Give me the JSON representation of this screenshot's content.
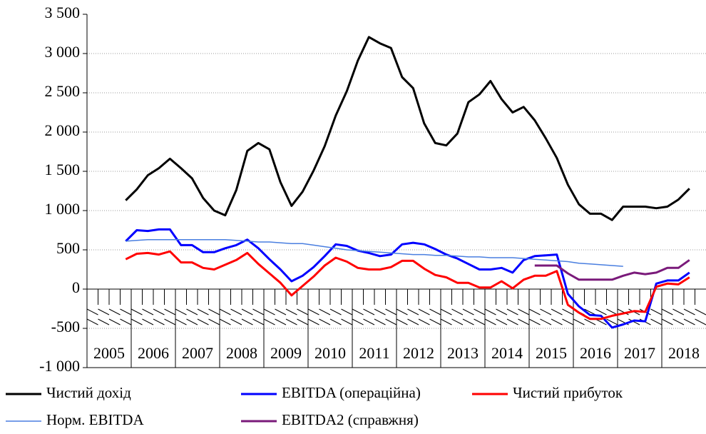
{
  "chart_data": {
    "type": "line",
    "categories": [
      null,
      null,
      null,
      null,
      null,
      null,
      null,
      null,
      null,
      null,
      null,
      null,
      null,
      null,
      null,
      null,
      null,
      null,
      null,
      null,
      null,
      null,
      null,
      null,
      null,
      null,
      null,
      null,
      null,
      null,
      null,
      null,
      null,
      null,
      null,
      null,
      null,
      null,
      null,
      null,
      null,
      null,
      null,
      null,
      null,
      null,
      null,
      null,
      null,
      null,
      null,
      null,
      null,
      null,
      null,
      null
    ],
    "year_labels": [
      "2005",
      "2006",
      "2007",
      "2008",
      "2009",
      "2010",
      "2011",
      "2012",
      "2013",
      "2014",
      "2015",
      "2016",
      "2017",
      "2018"
    ],
    "ylim": [
      -1000,
      3500
    ],
    "yticks": [
      {
        "value": -1000,
        "label": "-1 000"
      },
      -500,
      0,
      500,
      {
        "value": 1000,
        "label": "1 000"
      },
      {
        "value": 1500,
        "label": "1 500"
      },
      {
        "value": 2000,
        "label": "2 000"
      },
      {
        "value": 2500,
        "label": "2 500"
      },
      {
        "value": 3000,
        "label": "3 000"
      },
      {
        "value": 3500,
        "label": "3 500"
      }
    ],
    "grid": true,
    "series": [
      {
        "name": "Чистий дохід",
        "color": "#000000",
        "width": 3,
        "values": [
          null,
          null,
          null,
          1130,
          1270,
          1450,
          1540,
          1660,
          1540,
          1410,
          1160,
          1000,
          940,
          1260,
          1760,
          1860,
          1780,
          1360,
          1060,
          1240,
          1510,
          1820,
          2210,
          2520,
          2910,
          3210,
          3130,
          3070,
          2700,
          2560,
          2110,
          1860,
          1830,
          1980,
          2380,
          2480,
          2650,
          2420,
          2250,
          2320,
          2150,
          1920,
          1670,
          1330,
          1080,
          960,
          960,
          880,
          1050,
          1050,
          1050,
          1030,
          1050,
          1140,
          1280,
          null
        ]
      },
      {
        "name": "EBITDA (операційна)",
        "color": "#0000ff",
        "width": 3,
        "values": [
          null,
          null,
          null,
          610,
          750,
          740,
          760,
          760,
          560,
          560,
          470,
          470,
          520,
          560,
          630,
          520,
          380,
          250,
          100,
          170,
          280,
          420,
          570,
          550,
          490,
          460,
          420,
          440,
          570,
          590,
          570,
          510,
          440,
          390,
          320,
          250,
          250,
          270,
          210,
          370,
          420,
          430,
          440,
          -60,
          -220,
          -330,
          -340,
          -490,
          -450,
          -400,
          -410,
          70,
          110,
          110,
          210,
          null
        ]
      },
      {
        "name": "Чистий прибуток",
        "color": "#ff0000",
        "width": 3,
        "values": [
          null,
          null,
          null,
          380,
          450,
          460,
          440,
          480,
          340,
          340,
          270,
          250,
          310,
          370,
          460,
          320,
          200,
          80,
          -80,
          40,
          160,
          300,
          400,
          350,
          270,
          250,
          250,
          280,
          360,
          360,
          260,
          180,
          150,
          80,
          80,
          20,
          20,
          100,
          10,
          120,
          170,
          170,
          230,
          -200,
          -300,
          -380,
          -380,
          -340,
          -310,
          -280,
          -290,
          30,
          70,
          60,
          150,
          null
        ]
      },
      {
        "name": "Норм. EBITDA",
        "color": "#4a7fe0",
        "width": 1.5,
        "values": [
          null,
          null,
          null,
          610,
          620,
          630,
          630,
          630,
          630,
          630,
          630,
          630,
          630,
          620,
          610,
          600,
          600,
          590,
          580,
          580,
          560,
          540,
          520,
          500,
          490,
          480,
          470,
          460,
          450,
          440,
          440,
          430,
          430,
          420,
          410,
          410,
          400,
          400,
          400,
          390,
          380,
          370,
          360,
          350,
          330,
          320,
          310,
          300,
          290,
          null,
          null,
          null,
          null,
          null,
          null,
          null
        ]
      },
      {
        "name": "EBITDA2 (справжня)",
        "color": "#7a1a7a",
        "width": 3,
        "values": [
          null,
          null,
          null,
          null,
          null,
          null,
          null,
          null,
          null,
          null,
          null,
          null,
          null,
          null,
          null,
          null,
          null,
          null,
          null,
          null,
          null,
          null,
          null,
          null,
          null,
          null,
          null,
          null,
          null,
          null,
          null,
          null,
          null,
          null,
          null,
          null,
          null,
          null,
          null,
          null,
          300,
          300,
          300,
          200,
          120,
          120,
          120,
          120,
          170,
          210,
          190,
          210,
          270,
          270,
          370,
          null
        ]
      }
    ]
  }
}
